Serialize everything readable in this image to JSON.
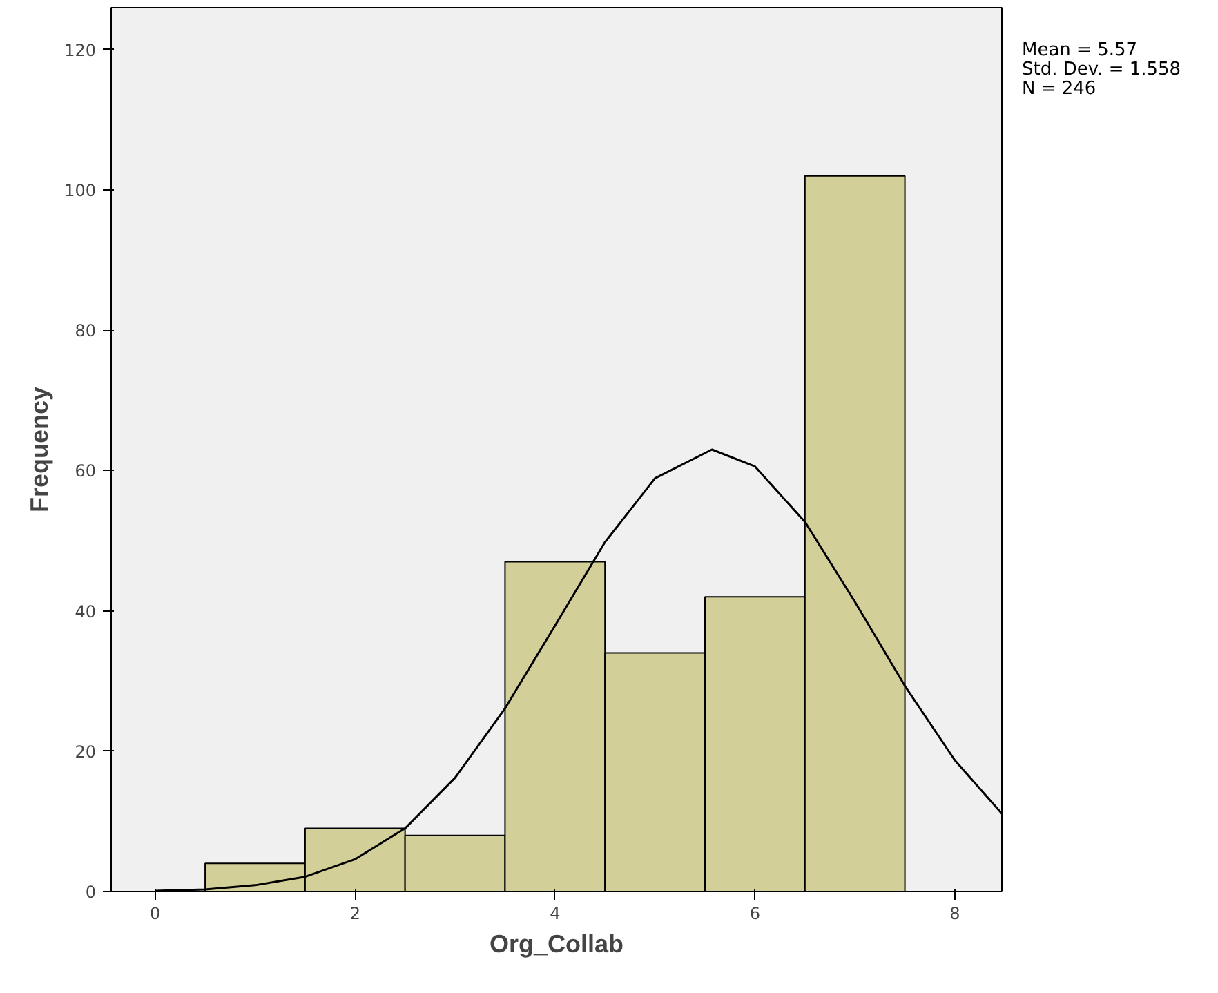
{
  "chart_data": {
    "type": "histogram",
    "xlabel": "Org_Collab",
    "ylabel": "Frequency",
    "bins": [
      0.5,
      1.5,
      2.5,
      3.5,
      4.5,
      5.5,
      6.5,
      7.5
    ],
    "values": [
      4,
      9,
      8,
      47,
      34,
      42,
      102
    ],
    "color": "#d3cf98",
    "series": [
      {
        "type": "line",
        "color": "#000000",
        "x": [
          0,
          0.5,
          1,
          1.5,
          2,
          2.5,
          3,
          3.5,
          4,
          4.5,
          5,
          5.57,
          6,
          6.5,
          7,
          7.5,
          8,
          8.47
        ],
        "values": [
          0.1,
          0.3,
          0.9,
          2.1,
          4.6,
          9.0,
          16.2,
          26.1,
          37.9,
          49.8,
          58.9,
          63.0,
          60.6,
          52.7,
          41.3,
          29.3,
          18.7,
          11.1
        ]
      }
    ],
    "xlim": [
      -0.44,
      8.47
    ],
    "ylim": [
      0,
      126
    ],
    "xticks": [
      0,
      2,
      4,
      6,
      8
    ],
    "yticks": [
      0,
      20,
      40,
      60,
      80,
      100,
      120
    ],
    "grid": false,
    "marker": "none",
    "line_style": "solid",
    "annotations": [
      "Mean = 5.57",
      "Std. Dev. = 1.558",
      "N = 246"
    ]
  }
}
